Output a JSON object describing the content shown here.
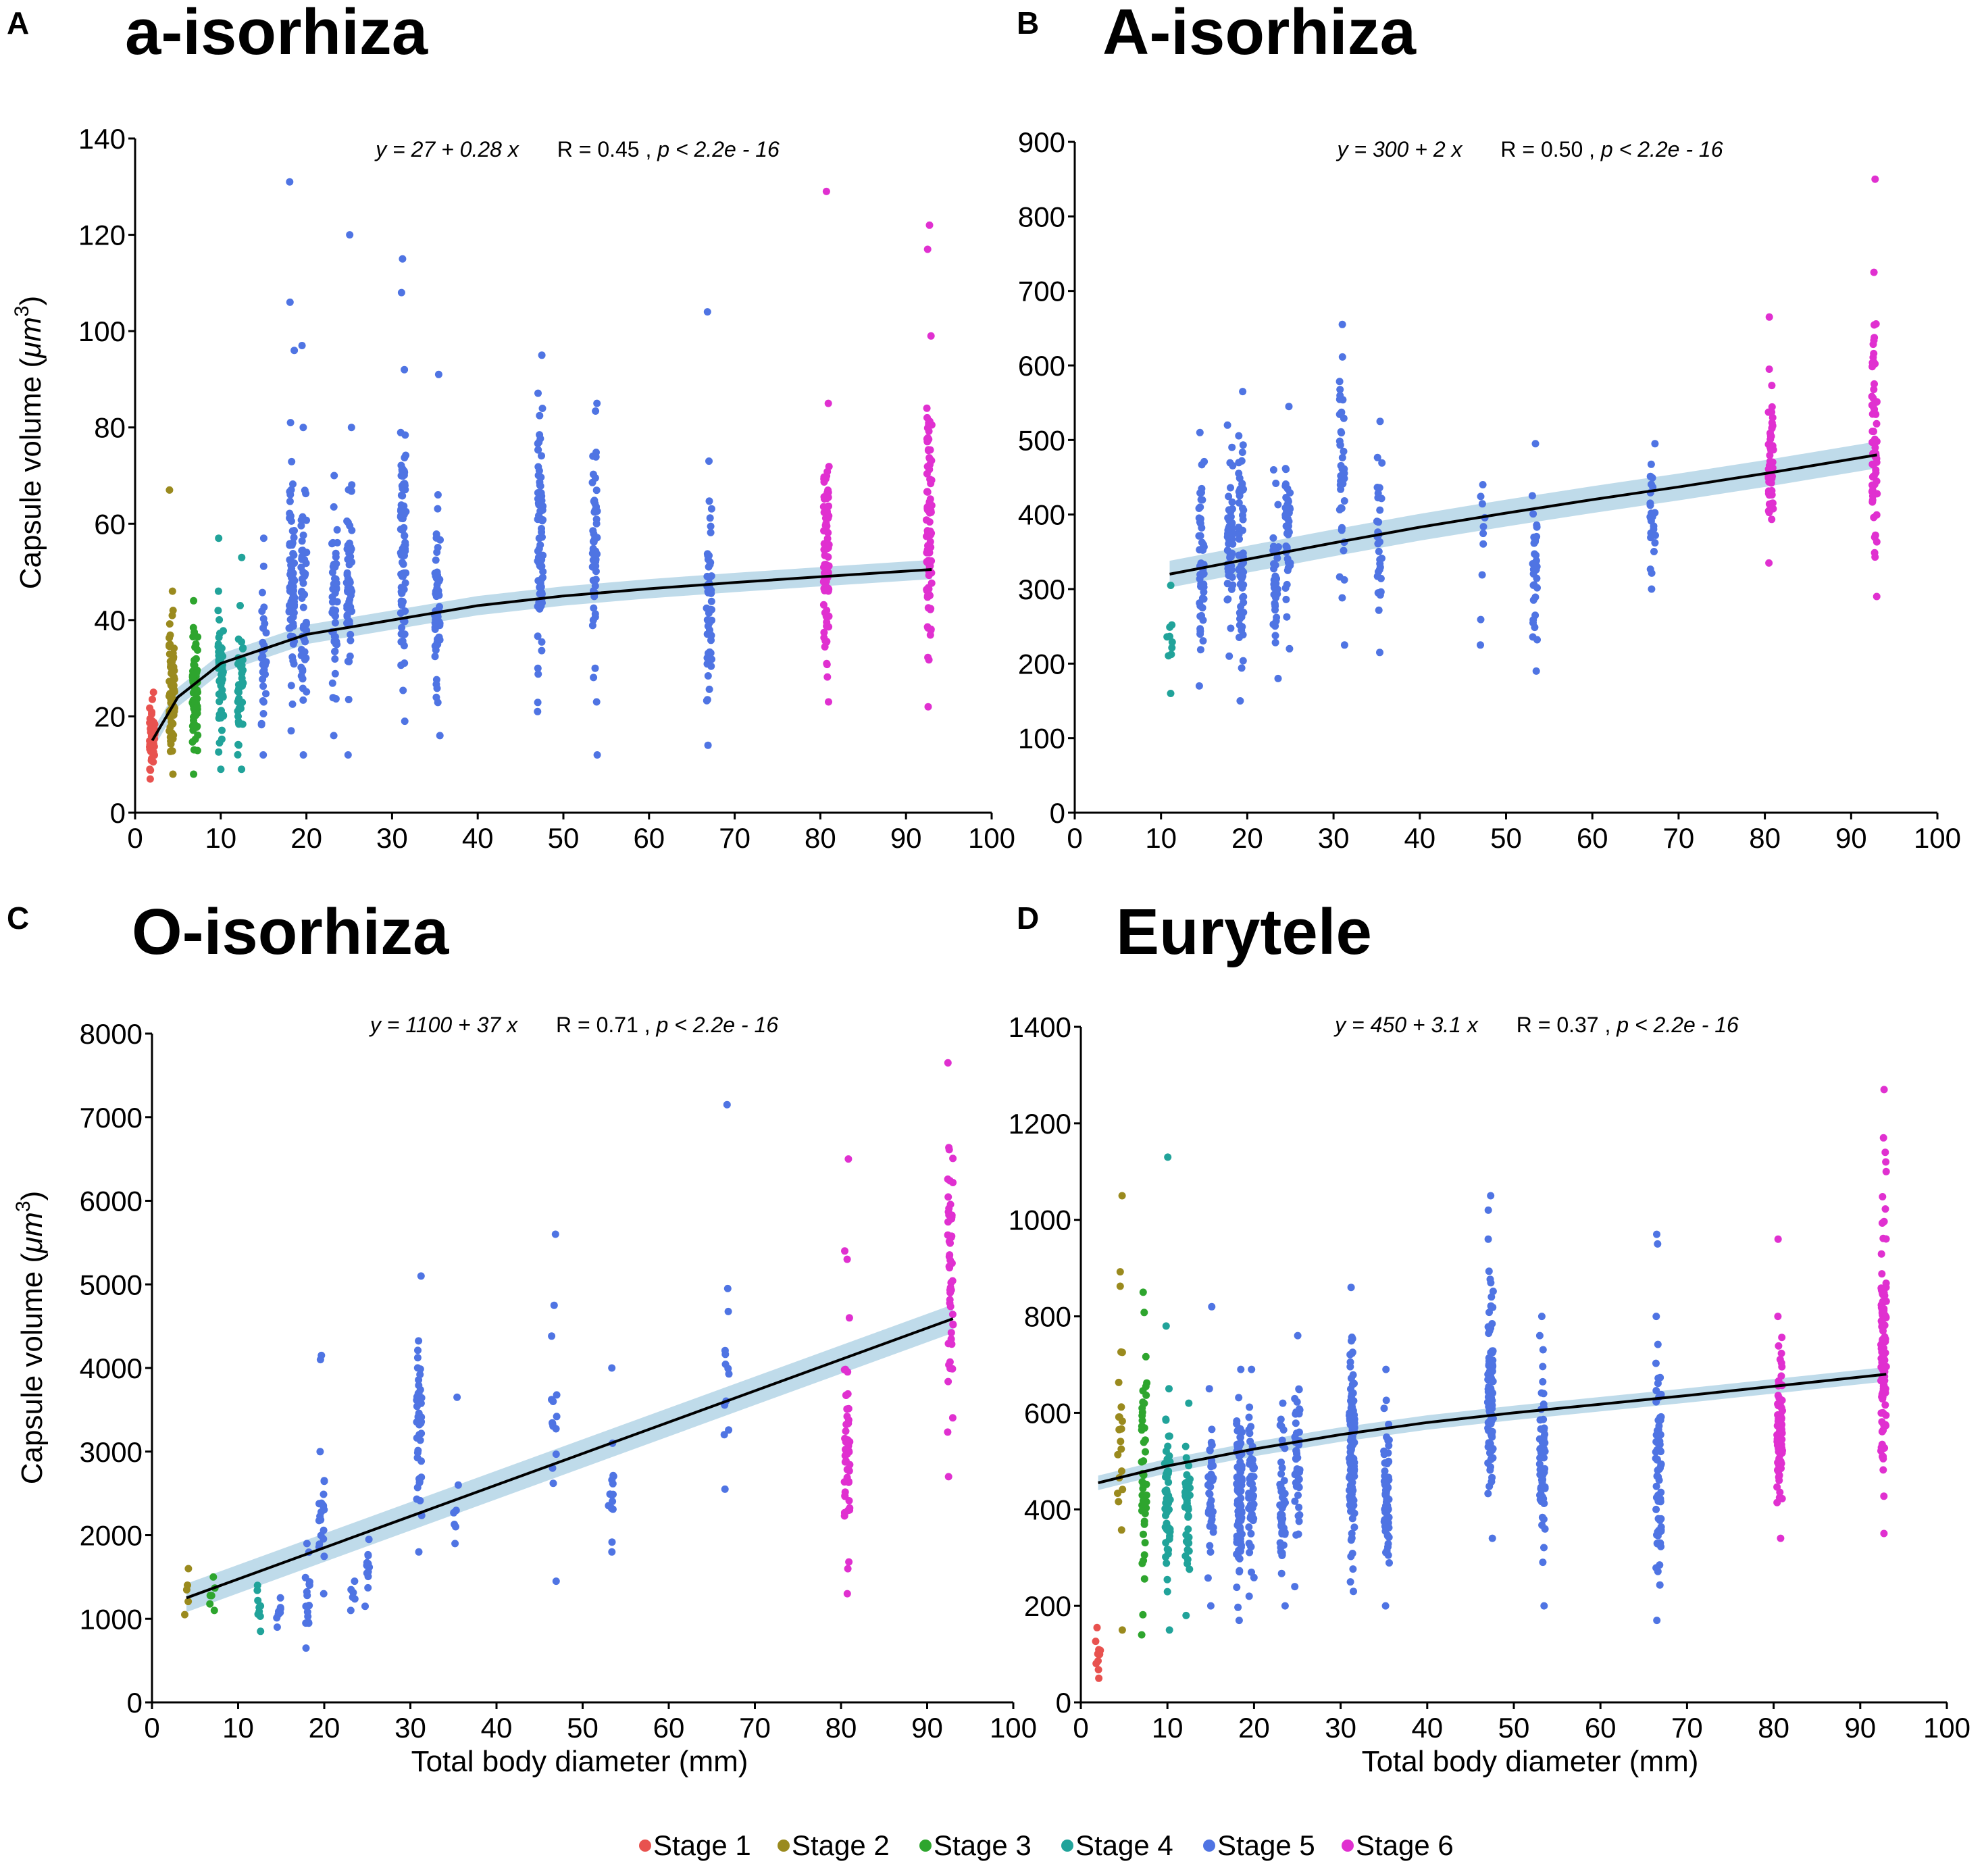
{
  "figure": {
    "legend": {
      "items": [
        {
          "label": "Stage 1",
          "color": "#e8524f"
        },
        {
          "label": "Stage 2",
          "color": "#9a8a1e"
        },
        {
          "label": "Stage 3",
          "color": "#2ea52e"
        },
        {
          "label": "Stage 4",
          "color": "#21a39a"
        },
        {
          "label": "Stage 5",
          "color": "#4f74e3"
        },
        {
          "label": "Stage 6",
          "color": "#e030d0"
        }
      ]
    }
  },
  "chart_data": [
    {
      "id": "A",
      "letter": "A",
      "type": "scatter",
      "title": "a-isorhiza",
      "xlabel": "",
      "ylabel": "Capsule volume (μm³)",
      "ylabel_main": "Capsule volume (",
      "ylabel_unit": "μm",
      "ylabel_sup": "3",
      "ylabel_close": ")",
      "xlim": [
        0,
        100
      ],
      "ylim": [
        0,
        140
      ],
      "xticks": [
        "0",
        "10",
        "20",
        "30",
        "40",
        "50",
        "60",
        "70",
        "80",
        "90",
        "100"
      ],
      "yticks": [
        "0",
        "20",
        "40",
        "60",
        "80",
        "100",
        "120",
        "140"
      ],
      "equation": {
        "text": "y = 27 + 0.28 x",
        "R": "R = 0.45",
        "p": "p < 2.2e - 16"
      },
      "fit": {
        "kind": "log",
        "points": [
          [
            2,
            15
          ],
          [
            5,
            24
          ],
          [
            10,
            31
          ],
          [
            20,
            37
          ],
          [
            30,
            40
          ],
          [
            40,
            43
          ],
          [
            50,
            45
          ],
          [
            60,
            46.5
          ],
          [
            70,
            47.8
          ],
          [
            80,
            49
          ],
          [
            93,
            50.5
          ]
        ],
        "ci": 2
      },
      "groups": [
        {
          "stage": "Stage 1",
          "x": 2,
          "n": 60,
          "min": 7,
          "max": 25,
          "outliers": []
        },
        {
          "stage": "Stage 2",
          "x": 4.3,
          "n": 70,
          "min": 8,
          "max": 46,
          "outliers": [
            67
          ]
        },
        {
          "stage": "Stage 3",
          "x": 7,
          "n": 70,
          "min": 8,
          "max": 44,
          "outliers": []
        },
        {
          "stage": "Stage 4",
          "x": 10,
          "n": 50,
          "min": 9,
          "max": 46,
          "outliers": [
            57
          ]
        },
        {
          "stage": "Stage 4",
          "x": 12.3,
          "n": 40,
          "min": 9,
          "max": 43,
          "outliers": [
            53
          ]
        },
        {
          "stage": "Stage 5",
          "x": 15,
          "n": 30,
          "min": 12,
          "max": 57,
          "outliers": []
        },
        {
          "stage": "Stage 5",
          "x": 18.3,
          "n": 70,
          "min": 17,
          "max": 81,
          "outliers": [
            96,
            106,
            131
          ]
        },
        {
          "stage": "Stage 5",
          "x": 19.7,
          "n": 50,
          "min": 12,
          "max": 80,
          "outliers": [
            97
          ]
        },
        {
          "stage": "Stage 5",
          "x": 23.3,
          "n": 50,
          "min": 16,
          "max": 70,
          "outliers": []
        },
        {
          "stage": "Stage 5",
          "x": 25,
          "n": 50,
          "min": 12,
          "max": 80,
          "outliers": [
            120
          ]
        },
        {
          "stage": "Stage 5",
          "x": 31.3,
          "n": 90,
          "min": 19,
          "max": 92,
          "outliers": [
            108,
            115
          ]
        },
        {
          "stage": "Stage 5",
          "x": 35.3,
          "n": 60,
          "min": 16,
          "max": 66,
          "outliers": [
            91
          ]
        },
        {
          "stage": "Stage 5",
          "x": 47.3,
          "n": 80,
          "min": 21,
          "max": 95,
          "outliers": []
        },
        {
          "stage": "Stage 5",
          "x": 53.7,
          "n": 50,
          "min": 23,
          "max": 85,
          "outliers": [
            12
          ]
        },
        {
          "stage": "Stage 5",
          "x": 67,
          "n": 50,
          "min": 14,
          "max": 73,
          "outliers": [
            104
          ]
        },
        {
          "stage": "Stage 6",
          "x": 80.7,
          "n": 90,
          "min": 23,
          "max": 85,
          "outliers": [
            129
          ]
        },
        {
          "stage": "Stage 6",
          "x": 92.7,
          "n": 100,
          "min": 22,
          "max": 99,
          "outliers": [
            117,
            122
          ]
        }
      ]
    },
    {
      "id": "B",
      "letter": "B",
      "type": "scatter",
      "title": "A-isorhiza",
      "xlabel": "",
      "ylabel": "",
      "xlim": [
        0,
        100
      ],
      "ylim": [
        0,
        900
      ],
      "xticks": [
        "0",
        "10",
        "20",
        "30",
        "40",
        "50",
        "60",
        "70",
        "80",
        "90",
        "100"
      ],
      "yticks": [
        "0",
        "100",
        "200",
        "300",
        "400",
        "500",
        "600",
        "700",
        "800",
        "900"
      ],
      "equation": {
        "text": "y = 300 + 2 x",
        "R": "R = 0.50",
        "p": "p < 2.2e - 16"
      },
      "fit": {
        "kind": "log",
        "points": [
          [
            11,
            320
          ],
          [
            20,
            340
          ],
          [
            30,
            362
          ],
          [
            40,
            383
          ],
          [
            50,
            402
          ],
          [
            60,
            420
          ],
          [
            70,
            437
          ],
          [
            80,
            455
          ],
          [
            93,
            480
          ]
        ],
        "ci": 18
      },
      "groups": [
        {
          "stage": "Stage 4",
          "x": 11,
          "n": 8,
          "min": 160,
          "max": 305,
          "outliers": []
        },
        {
          "stage": "Stage 5",
          "x": 14.7,
          "n": 50,
          "min": 170,
          "max": 510,
          "outliers": []
        },
        {
          "stage": "Stage 5",
          "x": 18,
          "n": 50,
          "min": 210,
          "max": 520,
          "outliers": []
        },
        {
          "stage": "Stage 5",
          "x": 19.3,
          "n": 60,
          "min": 150,
          "max": 565,
          "outliers": []
        },
        {
          "stage": "Stage 5",
          "x": 23.3,
          "n": 40,
          "min": 180,
          "max": 460,
          "outliers": []
        },
        {
          "stage": "Stage 5",
          "x": 24.7,
          "n": 40,
          "min": 220,
          "max": 545,
          "outliers": []
        },
        {
          "stage": "Stage 5",
          "x": 31,
          "n": 40,
          "min": 225,
          "max": 655,
          "outliers": []
        },
        {
          "stage": "Stage 5",
          "x": 35.3,
          "n": 30,
          "min": 215,
          "max": 525,
          "outliers": []
        },
        {
          "stage": "Stage 5",
          "x": 47.3,
          "n": 8,
          "min": 225,
          "max": 440,
          "outliers": []
        },
        {
          "stage": "Stage 5",
          "x": 53.3,
          "n": 30,
          "min": 190,
          "max": 495,
          "outliers": []
        },
        {
          "stage": "Stage 5",
          "x": 67,
          "n": 25,
          "min": 300,
          "max": 495,
          "outliers": []
        },
        {
          "stage": "Stage 6",
          "x": 80.7,
          "n": 50,
          "min": 335,
          "max": 595,
          "outliers": [
            665
          ]
        },
        {
          "stage": "Stage 6",
          "x": 92.7,
          "n": 60,
          "min": 290,
          "max": 725,
          "outliers": [
            850
          ]
        }
      ]
    },
    {
      "id": "C",
      "letter": "C",
      "type": "scatter",
      "title": "O-isorhiza",
      "xlabel": "Total body diameter (mm)",
      "ylabel": "Capsule volume (μm³)",
      "ylabel_main": "Capsule volume (",
      "ylabel_unit": "μm",
      "ylabel_sup": "3",
      "ylabel_close": ")",
      "xlim": [
        0,
        100
      ],
      "ylim": [
        0,
        8000
      ],
      "xticks": [
        "0",
        "10",
        "20",
        "30",
        "40",
        "50",
        "60",
        "70",
        "80",
        "90",
        "100"
      ],
      "yticks": [
        "0",
        "1000",
        "2000",
        "3000",
        "4000",
        "5000",
        "6000",
        "7000",
        "8000"
      ],
      "equation": {
        "text": "y = 1100 + 37 x",
        "R": "R = 0.71",
        "p": "p < 2.2e - 16"
      },
      "fit": {
        "kind": "linear",
        "points": [
          [
            4,
            1250
          ],
          [
            93,
            4590
          ]
        ],
        "ci": 170
      },
      "groups": [
        {
          "stage": "Stage 2",
          "x": 4,
          "n": 3,
          "min": 1050,
          "max": 1600,
          "outliers": []
        },
        {
          "stage": "Stage 3",
          "x": 7,
          "n": 5,
          "min": 1100,
          "max": 1500,
          "outliers": []
        },
        {
          "stage": "Stage 4",
          "x": 12.3,
          "n": 8,
          "min": 850,
          "max": 1400,
          "outliers": []
        },
        {
          "stage": "Stage 5",
          "x": 14.7,
          "n": 6,
          "min": 900,
          "max": 1250,
          "outliers": []
        },
        {
          "stage": "Stage 5",
          "x": 18,
          "n": 15,
          "min": 650,
          "max": 1900,
          "outliers": []
        },
        {
          "stage": "Stage 5",
          "x": 19.7,
          "n": 20,
          "min": 1300,
          "max": 3000,
          "outliers": [
            4100,
            4150
          ]
        },
        {
          "stage": "Stage 5",
          "x": 23.3,
          "n": 4,
          "min": 1100,
          "max": 1450,
          "outliers": []
        },
        {
          "stage": "Stage 5",
          "x": 25,
          "n": 10,
          "min": 1150,
          "max": 1950,
          "outliers": []
        },
        {
          "stage": "Stage 5",
          "x": 31,
          "n": 40,
          "min": 1800,
          "max": 5100,
          "outliers": []
        },
        {
          "stage": "Stage 5",
          "x": 35.3,
          "n": 4,
          "min": 1900,
          "max": 2600,
          "outliers": [
            3650
          ]
        },
        {
          "stage": "Stage 5",
          "x": 46.7,
          "n": 12,
          "min": 1450,
          "max": 4750,
          "outliers": [
            5600
          ]
        },
        {
          "stage": "Stage 5",
          "x": 53.3,
          "n": 12,
          "min": 1800,
          "max": 3100,
          "outliers": [
            4000
          ]
        },
        {
          "stage": "Stage 5",
          "x": 66.7,
          "n": 10,
          "min": 2550,
          "max": 4950,
          "outliers": [
            7150
          ]
        },
        {
          "stage": "Stage 6",
          "x": 80.7,
          "n": 50,
          "min": 1300,
          "max": 4600,
          "outliers": [
            5300,
            5400,
            6500
          ]
        },
        {
          "stage": "Stage 6",
          "x": 92.7,
          "n": 50,
          "min": 2700,
          "max": 7650,
          "outliers": []
        }
      ]
    },
    {
      "id": "D",
      "letter": "D",
      "type": "scatter",
      "title": "Eurytele",
      "xlabel": "Total body diameter (mm)",
      "ylabel": "",
      "xlim": [
        0,
        100
      ],
      "ylim": [
        0,
        1400
      ],
      "xticks": [
        "0",
        "10",
        "20",
        "30",
        "40",
        "50",
        "60",
        "70",
        "80",
        "90",
        "100"
      ],
      "yticks": [
        "0",
        "200",
        "400",
        "600",
        "800",
        "1000",
        "1200",
        "1400"
      ],
      "equation": {
        "text": "y = 450 + 3.1 x",
        "R": "R = 0.37",
        "p": "p < 2.2e - 16"
      },
      "fit": {
        "kind": "log",
        "points": [
          [
            2,
            455
          ],
          [
            10,
            490
          ],
          [
            20,
            525
          ],
          [
            30,
            555
          ],
          [
            40,
            580
          ],
          [
            50,
            600
          ],
          [
            60,
            618
          ],
          [
            70,
            636
          ],
          [
            80,
            655
          ],
          [
            93,
            680
          ]
        ],
        "ci": 15
      },
      "groups": [
        {
          "stage": "Stage 1",
          "x": 2,
          "n": 8,
          "min": 50,
          "max": 155,
          "outliers": []
        },
        {
          "stage": "Stage 2",
          "x": 4.5,
          "n": 20,
          "min": 150,
          "max": 1050,
          "outliers": []
        },
        {
          "stage": "Stage 3",
          "x": 7.3,
          "n": 45,
          "min": 140,
          "max": 850,
          "outliers": []
        },
        {
          "stage": "Stage 4",
          "x": 10,
          "n": 60,
          "min": 150,
          "max": 650,
          "outliers": [
            780,
            1130
          ]
        },
        {
          "stage": "Stage 4",
          "x": 12.3,
          "n": 40,
          "min": 180,
          "max": 620,
          "outliers": []
        },
        {
          "stage": "Stage 5",
          "x": 15,
          "n": 40,
          "min": 200,
          "max": 650,
          "outliers": [
            820
          ]
        },
        {
          "stage": "Stage 5",
          "x": 18.3,
          "n": 80,
          "min": 170,
          "max": 690,
          "outliers": []
        },
        {
          "stage": "Stage 5",
          "x": 19.7,
          "n": 60,
          "min": 220,
          "max": 690,
          "outliers": []
        },
        {
          "stage": "Stage 5",
          "x": 23.3,
          "n": 50,
          "min": 200,
          "max": 620,
          "outliers": []
        },
        {
          "stage": "Stage 5",
          "x": 25,
          "n": 50,
          "min": 240,
          "max": 760,
          "outliers": []
        },
        {
          "stage": "Stage 5",
          "x": 31.3,
          "n": 110,
          "min": 230,
          "max": 860,
          "outliers": []
        },
        {
          "stage": "Stage 5",
          "x": 35.3,
          "n": 70,
          "min": 200,
          "max": 690,
          "outliers": []
        },
        {
          "stage": "Stage 5",
          "x": 47.3,
          "n": 90,
          "min": 340,
          "max": 960,
          "outliers": [
            1020,
            1050
          ]
        },
        {
          "stage": "Stage 5",
          "x": 53.3,
          "n": 60,
          "min": 200,
          "max": 760,
          "outliers": [
            800
          ]
        },
        {
          "stage": "Stage 5",
          "x": 66.7,
          "n": 70,
          "min": 170,
          "max": 800,
          "outliers": [
            950,
            970
          ]
        },
        {
          "stage": "Stage 6",
          "x": 80.7,
          "n": 90,
          "min": 340,
          "max": 800,
          "outliers": [
            960
          ]
        },
        {
          "stage": "Stage 6",
          "x": 92.7,
          "n": 100,
          "min": 350,
          "max": 1100,
          "outliers": [
            1120,
            1140,
            1170,
            1270
          ]
        }
      ]
    }
  ]
}
